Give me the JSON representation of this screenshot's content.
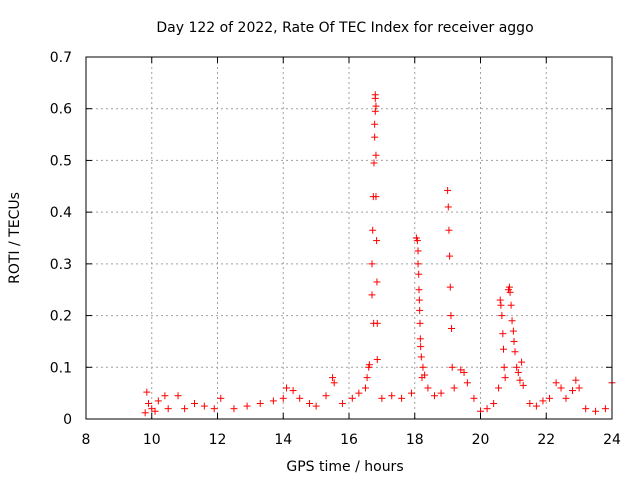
{
  "chart_data": {
    "type": "scatter",
    "title": "Day 122 of 2022, Rate Of TEC Index for receiver aggo",
    "xlabel": "GPS time / hours",
    "ylabel": "ROTI / TECUs",
    "xlim": [
      8,
      24
    ],
    "ylim": [
      0,
      0.7
    ],
    "xticks": [
      8,
      10,
      12,
      14,
      16,
      18,
      20,
      22,
      24
    ],
    "yticks": [
      0,
      0.1,
      0.2,
      0.3,
      0.4,
      0.5,
      0.6,
      0.7
    ],
    "xtick_labels": [
      "8",
      "10",
      "12",
      "14",
      "16",
      "18",
      "20",
      "22",
      "24"
    ],
    "ytick_labels": [
      "0",
      "0.1",
      "0.2",
      "0.3",
      "0.4",
      "0.5",
      "0.6",
      "0.7"
    ],
    "grid": true,
    "marker": "+",
    "color": "#ff0000",
    "series": [
      {
        "name": "ROTI",
        "points": [
          [
            9.8,
            0.012
          ],
          [
            9.85,
            0.052
          ],
          [
            9.9,
            0.03
          ],
          [
            10.0,
            0.02
          ],
          [
            10.1,
            0.015
          ],
          [
            10.2,
            0.035
          ],
          [
            10.4,
            0.045
          ],
          [
            10.5,
            0.02
          ],
          [
            10.8,
            0.045
          ],
          [
            11.0,
            0.02
          ],
          [
            11.3,
            0.03
          ],
          [
            11.6,
            0.025
          ],
          [
            11.9,
            0.02
          ],
          [
            12.1,
            0.04
          ],
          [
            12.5,
            0.02
          ],
          [
            12.9,
            0.025
          ],
          [
            13.3,
            0.03
          ],
          [
            13.7,
            0.035
          ],
          [
            14.0,
            0.04
          ],
          [
            14.1,
            0.06
          ],
          [
            14.3,
            0.055
          ],
          [
            14.5,
            0.04
          ],
          [
            14.8,
            0.03
          ],
          [
            15.0,
            0.025
          ],
          [
            15.3,
            0.045
          ],
          [
            15.5,
            0.08
          ],
          [
            15.55,
            0.07
          ],
          [
            15.8,
            0.03
          ],
          [
            16.1,
            0.04
          ],
          [
            16.3,
            0.05
          ],
          [
            16.5,
            0.06
          ],
          [
            16.55,
            0.08
          ],
          [
            16.6,
            0.1
          ],
          [
            16.62,
            0.105
          ],
          [
            16.7,
            0.24
          ],
          [
            16.7,
            0.3
          ],
          [
            16.72,
            0.365
          ],
          [
            16.74,
            0.43
          ],
          [
            16.76,
            0.495
          ],
          [
            16.78,
            0.545
          ],
          [
            16.78,
            0.57
          ],
          [
            16.8,
            0.595
          ],
          [
            16.8,
            0.62
          ],
          [
            16.8,
            0.627
          ],
          [
            16.82,
            0.605
          ],
          [
            16.82,
            0.51
          ],
          [
            16.82,
            0.43
          ],
          [
            16.84,
            0.345
          ],
          [
            16.85,
            0.265
          ],
          [
            16.86,
            0.185
          ],
          [
            16.75,
            0.185
          ],
          [
            16.86,
            0.115
          ],
          [
            17.0,
            0.04
          ],
          [
            17.3,
            0.045
          ],
          [
            17.6,
            0.04
          ],
          [
            17.9,
            0.05
          ],
          [
            18.05,
            0.35
          ],
          [
            18.08,
            0.345
          ],
          [
            18.1,
            0.325
          ],
          [
            18.1,
            0.3
          ],
          [
            18.12,
            0.28
          ],
          [
            18.13,
            0.25
          ],
          [
            18.14,
            0.23
          ],
          [
            18.15,
            0.21
          ],
          [
            18.16,
            0.185
          ],
          [
            18.17,
            0.155
          ],
          [
            18.18,
            0.14
          ],
          [
            18.2,
            0.12
          ],
          [
            18.22,
            0.08
          ],
          [
            18.25,
            0.1
          ],
          [
            18.3,
            0.085
          ],
          [
            18.4,
            0.06
          ],
          [
            18.6,
            0.045
          ],
          [
            18.8,
            0.05
          ],
          [
            19.0,
            0.442
          ],
          [
            19.02,
            0.41
          ],
          [
            19.04,
            0.365
          ],
          [
            19.06,
            0.315
          ],
          [
            19.08,
            0.255
          ],
          [
            19.1,
            0.2
          ],
          [
            19.12,
            0.175
          ],
          [
            19.14,
            0.1
          ],
          [
            19.2,
            0.06
          ],
          [
            19.4,
            0.095
          ],
          [
            19.5,
            0.09
          ],
          [
            19.6,
            0.07
          ],
          [
            19.8,
            0.04
          ],
          [
            20.0,
            0.015
          ],
          [
            20.2,
            0.02
          ],
          [
            20.4,
            0.03
          ],
          [
            20.55,
            0.06
          ],
          [
            20.6,
            0.23
          ],
          [
            20.62,
            0.22
          ],
          [
            20.65,
            0.2
          ],
          [
            20.68,
            0.165
          ],
          [
            20.7,
            0.135
          ],
          [
            20.72,
            0.1
          ],
          [
            20.75,
            0.08
          ],
          [
            20.85,
            0.25
          ],
          [
            20.88,
            0.255
          ],
          [
            20.9,
            0.245
          ],
          [
            20.93,
            0.22
          ],
          [
            20.96,
            0.19
          ],
          [
            21.0,
            0.17
          ],
          [
            21.02,
            0.15
          ],
          [
            21.05,
            0.13
          ],
          [
            21.1,
            0.1
          ],
          [
            21.15,
            0.09
          ],
          [
            21.2,
            0.075
          ],
          [
            21.25,
            0.11
          ],
          [
            21.3,
            0.065
          ],
          [
            21.5,
            0.03
          ],
          [
            21.7,
            0.025
          ],
          [
            21.9,
            0.035
          ],
          [
            22.1,
            0.04
          ],
          [
            22.3,
            0.07
          ],
          [
            22.45,
            0.06
          ],
          [
            22.6,
            0.04
          ],
          [
            22.8,
            0.055
          ],
          [
            22.9,
            0.075
          ],
          [
            23.0,
            0.06
          ],
          [
            23.2,
            0.02
          ],
          [
            23.5,
            0.015
          ],
          [
            23.8,
            0.02
          ],
          [
            24.0,
            0.07
          ]
        ]
      }
    ]
  }
}
